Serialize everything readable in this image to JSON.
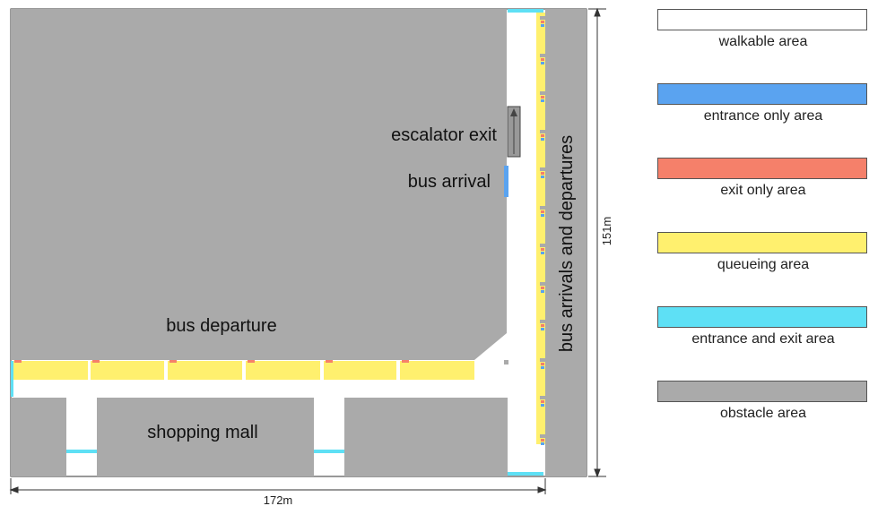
{
  "labels": {
    "escalator_exit": "escalator exit",
    "bus_arrival": "bus arrival",
    "bus_departure": "bus departure",
    "shopping_mall": "shopping mall",
    "bus_lane": "bus arrivals and departures"
  },
  "dimensions": {
    "height": "151m",
    "width": "172m"
  },
  "colors": {
    "walkable": "#ffffff",
    "entrance_only": "#5aa3f0",
    "exit_only": "#f5806a",
    "queueing": "#fff06e",
    "entrance_exit": "#5ee0f5",
    "obstacle": "#aaaaaa"
  },
  "legend": [
    {
      "label": "walkable area",
      "color": "#ffffff"
    },
    {
      "label": "entrance only area",
      "color": "#5aa3f0"
    },
    {
      "label": "exit only area",
      "color": "#f5806a"
    },
    {
      "label": "queueing area",
      "color": "#fff06e"
    },
    {
      "label": "entrance and exit area",
      "color": "#5ee0f5"
    },
    {
      "label": "obstacle area",
      "color": "#aaaaaa"
    }
  ]
}
